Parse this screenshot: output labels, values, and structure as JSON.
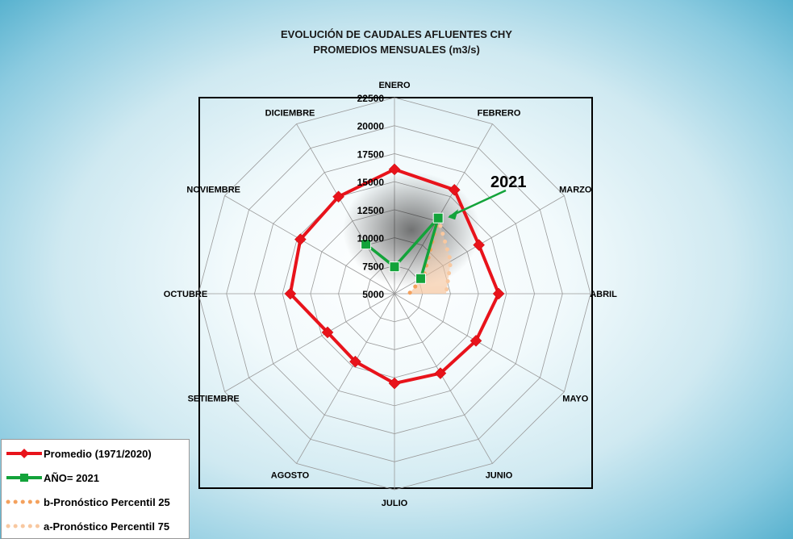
{
  "chart_data": {
    "type": "radar",
    "title": "EVOLUCIÓN DE CAUDALES AFLUENTES CHY",
    "subtitle": "PROMEDIOS MENSUALES (m3/s)",
    "categories": [
      "ENERO",
      "FEBRERO",
      "MARZO",
      "ABRIL",
      "MAYO",
      "JUNIO",
      "JULIO",
      "AGOSTO",
      "SETIEMBRE",
      "OCTUBRE",
      "NOVIEMBRE",
      "DICIEMBRE"
    ],
    "radial_ticks": [
      "5000",
      "7500",
      "10000",
      "12500",
      "15000",
      "17500",
      "20000",
      "22500"
    ],
    "rlim": [
      5000,
      22500
    ],
    "series": [
      {
        "name": "Promedio (1971/2020)",
        "color": "#e8131b",
        "marker": "diamond",
        "values": [
          16100,
          15700,
          13700,
          14300,
          13400,
          13200,
          13000,
          12000,
          11900,
          14300,
          14700,
          15000
        ]
      },
      {
        "name": "AÑO= 2021",
        "color": "#13a33a",
        "marker": "square",
        "values": [
          7400,
          12800,
          7700,
          null,
          null,
          null,
          null,
          null,
          null,
          null,
          null,
          10100
        ]
      },
      {
        "name": "b-Pronóstico Percentil 25",
        "color": "#f4a15d",
        "style": "dotted",
        "values": [
          7400,
          12800,
          8000,
          6300,
          null,
          null,
          null,
          null,
          null,
          null,
          null,
          null
        ]
      },
      {
        "name": "a-Pronóstico Percentil 75",
        "color": "#f8c8a0",
        "style": "dotted",
        "values": [
          7400,
          12800,
          10800,
          9600,
          null,
          null,
          null,
          null,
          null,
          null,
          null,
          null
        ]
      }
    ],
    "annotation": {
      "text": "2021",
      "color": "#13a33a"
    },
    "legend_position": "bottom-left"
  }
}
